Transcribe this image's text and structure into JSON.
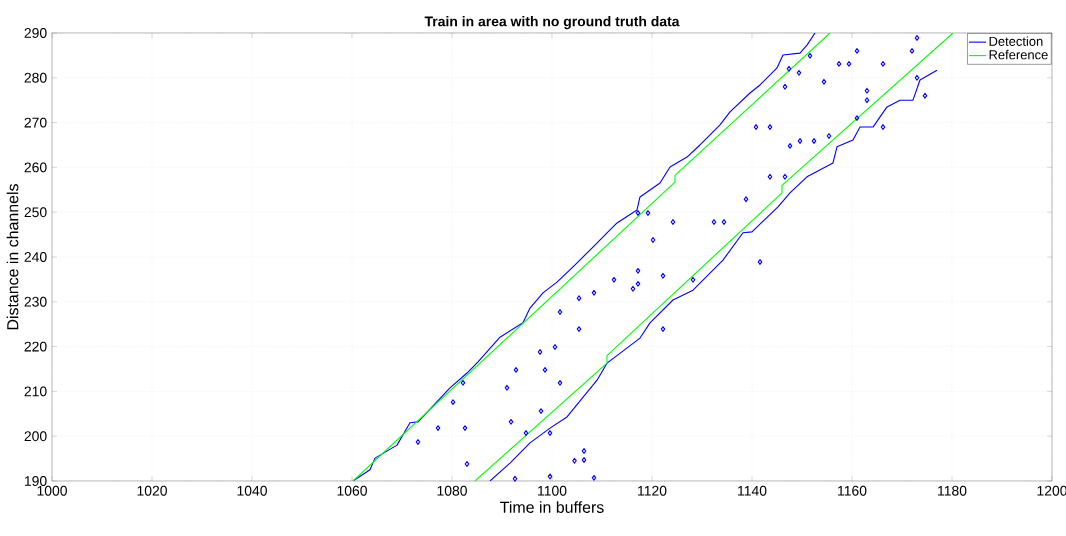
{
  "chart_data": {
    "type": "line",
    "title": "Train in area with no ground truth data",
    "xlabel": "Time in buffers",
    "ylabel": "Distance in channels",
    "xlim": [
      1000,
      1200
    ],
    "ylim": [
      190,
      290
    ],
    "xticks": [
      1000,
      1020,
      1040,
      1060,
      1080,
      1100,
      1120,
      1140,
      1160,
      1180,
      1200
    ],
    "yticks": [
      190,
      200,
      210,
      220,
      230,
      240,
      250,
      260,
      270,
      280,
      290
    ],
    "grid": true,
    "legend": "top right",
    "marker": "none",
    "series": [
      {
        "name": "Detection",
        "color": "#0000ff",
        "x": [
          1060.2,
          1063.6,
          1064.6,
          1069,
          1071.6,
          1073.2,
          1079.6,
          1083,
          1085.2,
          1089.6,
          1094.2,
          1095.6,
          1098.2,
          1101,
          1104.2,
          1108.2,
          1111,
          1113,
          1117,
          1117.6,
          1121.6,
          1123.6,
          1127,
          1129.6,
          1133.6,
          1135.6,
          1139.6,
          1141.6,
          1145,
          1146.2,
          1149.6,
          1151,
          1152.6
        ],
        "values": [
          190,
          192.5,
          195.1,
          198,
          203,
          203.2,
          210.8,
          214.1,
          216.6,
          222.1,
          225.3,
          228.6,
          232,
          234.4,
          237.8,
          242.2,
          245.4,
          247.6,
          250.5,
          253.4,
          256.5,
          260.1,
          262.3,
          265,
          269.5,
          272.4,
          276.6,
          278.4,
          282.2,
          285.1,
          285.5,
          287.3,
          290
        ]
      },
      {
        "color": "#0000ff",
        "x": [
          1087.6,
          1091.6,
          1095.6,
          1099.6,
          1103,
          1109,
          1111,
          1117.6,
          1119.6,
          1124.2,
          1128.2,
          1134.2,
          1138.2,
          1140,
          1145.2,
          1147.6,
          1151,
          1156.2,
          1157,
          1160.2,
          1161.6,
          1164.2,
          1167,
          1169.6,
          1172.2,
          1173.6,
          1177
        ],
        "values": [
          190,
          194,
          198.5,
          201.8,
          204.3,
          212.5,
          216.3,
          221.9,
          225.3,
          230.4,
          232.6,
          239.3,
          245.4,
          245.6,
          251.2,
          254.3,
          257.9,
          261,
          264.6,
          266.1,
          269,
          269,
          273.5,
          275,
          275,
          279.5,
          281.7
        ]
      },
      {
        "type": "scatter",
        "marker": "diamond",
        "color": "#0000ff",
        "x": [
          1073.2,
          1077.2,
          1082.6,
          1080.2,
          1082.2,
          1083,
          1091,
          1091.8,
          1092.8,
          1094.8,
          1097.8,
          1097.6,
          1098.6,
          1099.6,
          1100.6,
          1101.6,
          1101.6,
          1105.4,
          1105.4,
          1108.4,
          1112.4,
          1116.2,
          1117.2,
          1117.2,
          1122.2,
          1122.2,
          1117.2,
          1119.2,
          1124.2,
          1120.2,
          1128.2,
          1106.4,
          1106.4,
          1108.4,
          1104.5,
          1099.6,
          1092.6,
          1141.6,
          1132.4,
          1134.4,
          1138.8,
          1143.6,
          1146.6,
          1140.8,
          1143.6,
          1147.6,
          1149.6,
          1152.4,
          1155.4,
          1146.6,
          1147.4,
          1149.4,
          1151.6,
          1154.4,
          1157.4,
          1159.4,
          1161,
          1163,
          1163,
          1161,
          1166.2,
          1166.2,
          1172,
          1173,
          1173,
          1174.6
        ],
        "values": [
          198.7,
          201.8,
          201.8,
          207.6,
          211.9,
          193.8,
          210.8,
          203.2,
          214.8,
          200.7,
          205.6,
          218.8,
          214.8,
          200.7,
          219.9,
          211.9,
          227.7,
          230.8,
          223.9,
          232,
          234.9,
          232.9,
          234,
          236.9,
          235.8,
          223.9,
          249.8,
          249.8,
          247.8,
          243.8,
          234.9,
          196.7,
          194.7,
          190.7,
          194.5,
          191,
          190.5,
          238.9,
          247.8,
          247.8,
          252.9,
          257.9,
          257.9,
          269,
          269,
          264.8,
          265.9,
          265.9,
          267,
          278,
          282,
          281.1,
          284.9,
          279.1,
          283.1,
          283.1,
          286,
          277.1,
          275,
          271,
          283.1,
          269,
          286,
          280,
          288.9,
          276
        ]
      },
      {
        "name": "Reference",
        "color": "#00ff00",
        "x": [
          1060.2,
          1124.6,
          1124.6,
          1155.6
        ],
        "values": [
          190,
          256.7,
          258.2,
          290
        ]
      },
      {
        "color": "#00ff00",
        "x": [
          1084.6,
          1111,
          1111,
          1146,
          1146,
          1180.2
        ],
        "values": [
          190,
          216.3,
          218,
          254.3,
          256,
          290
        ]
      }
    ]
  }
}
